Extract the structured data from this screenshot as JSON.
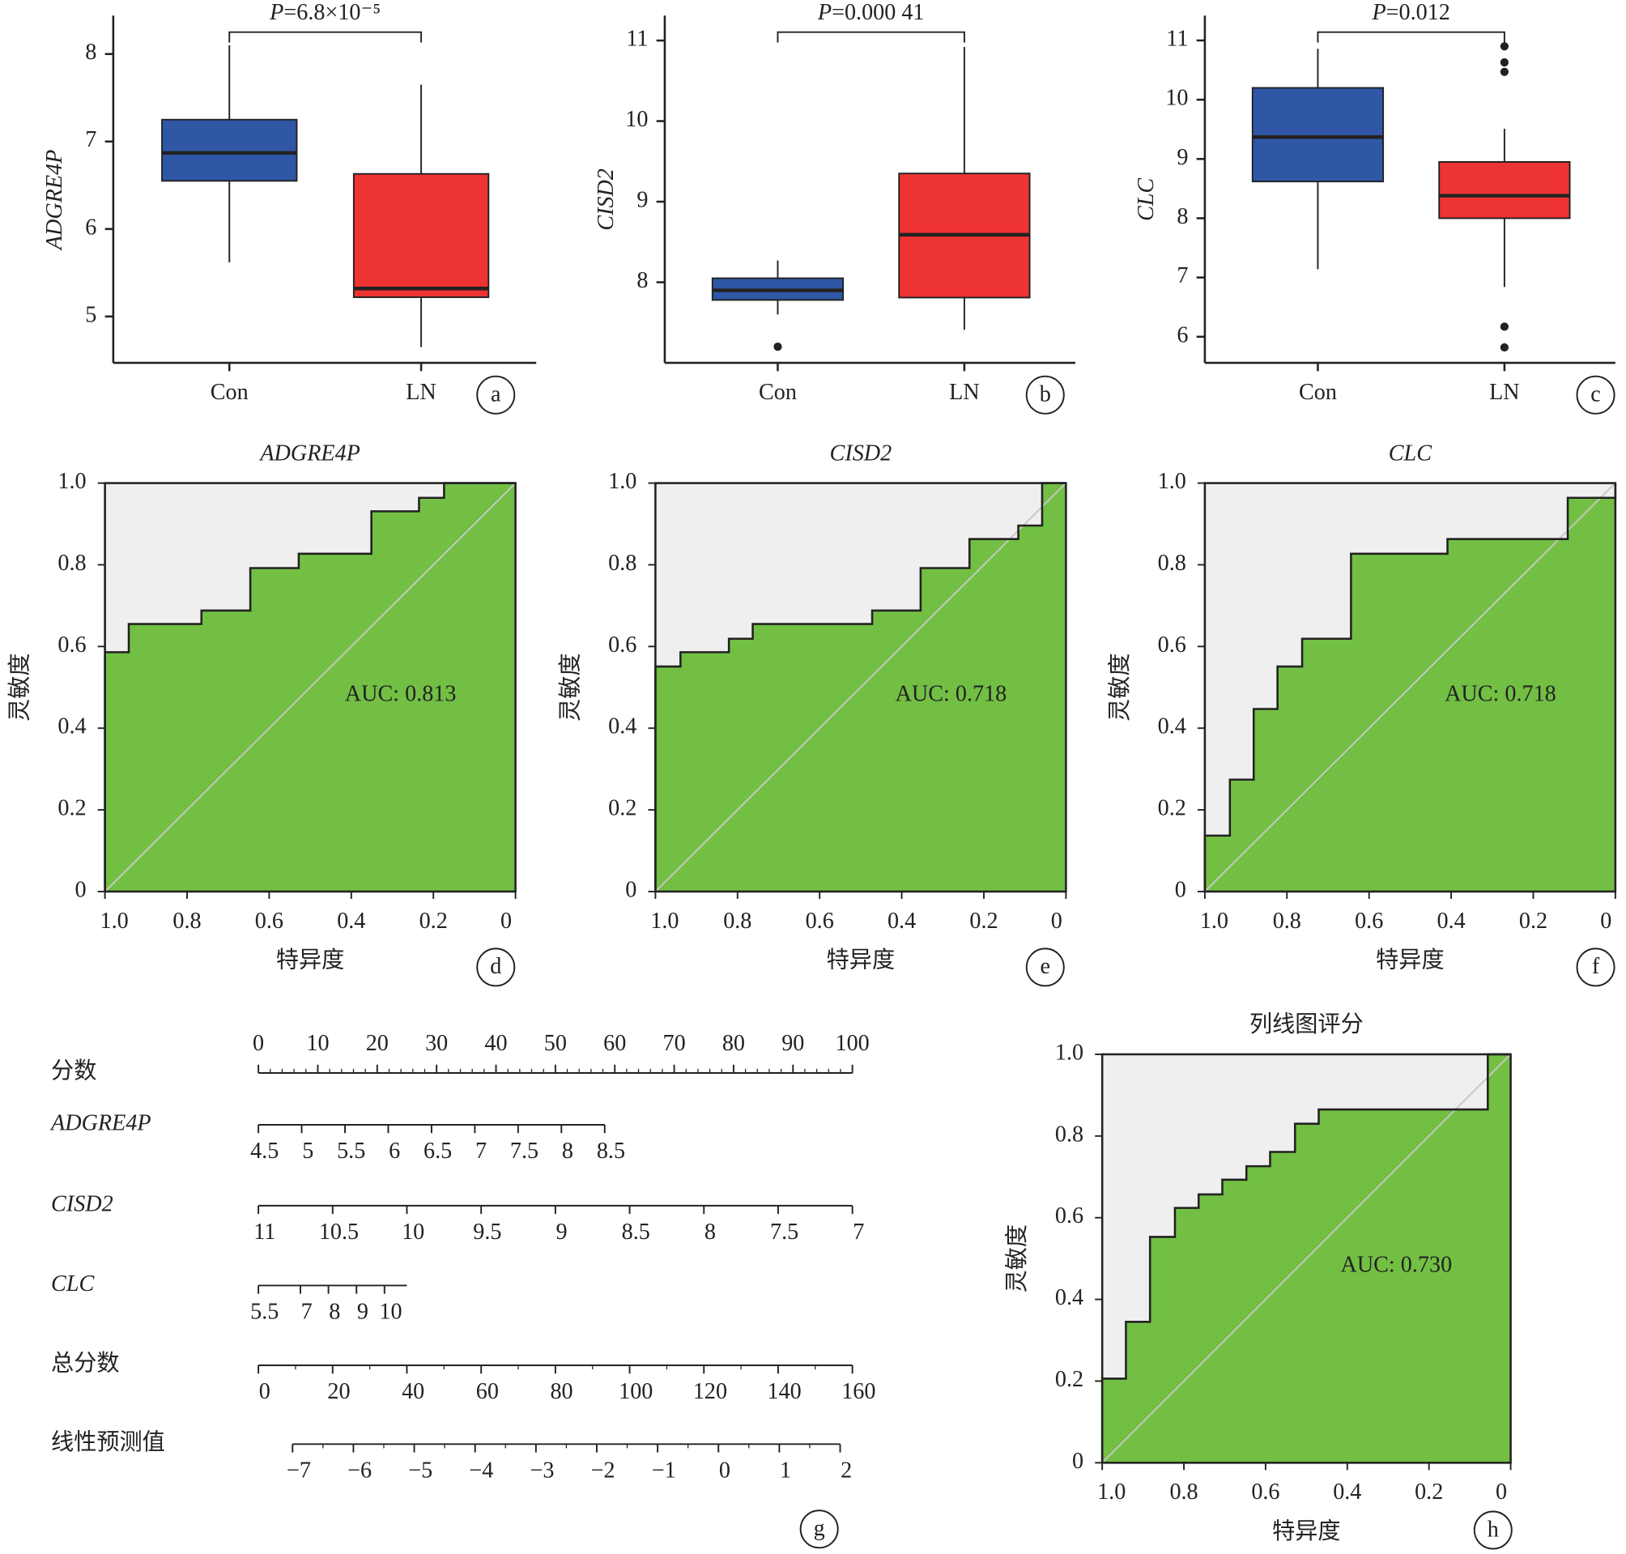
{
  "chart_data": [
    {
      "type": "box",
      "panel": "a",
      "ylabel": "ADGRE4P",
      "categories": [
        "Con",
        "LN"
      ],
      "colors": [
        "#2f57a6",
        "#ee3333"
      ],
      "boxes": [
        {
          "whislo": 5.62,
          "q1": 6.55,
          "med": 6.87,
          "q3": 7.25,
          "whishi": 8.1,
          "fliers": []
        },
        {
          "whislo": 4.65,
          "q1": 5.22,
          "med": 5.32,
          "q3": 6.63,
          "whishi": 7.65,
          "fliers": []
        }
      ],
      "ylim": [
        4.47,
        8.44
      ],
      "yticks": [
        5,
        6,
        7,
        8
      ],
      "p_label": "P",
      "p_value": "=6.8×10⁻⁵"
    },
    {
      "type": "box",
      "panel": "b",
      "ylabel": "CISD2",
      "categories": [
        "Con",
        "LN"
      ],
      "colors": [
        "#2f57a6",
        "#ee3333"
      ],
      "boxes": [
        {
          "whislo": 7.6,
          "q1": 7.78,
          "med": 7.9,
          "q3": 8.05,
          "whishi": 8.27,
          "fliers": [
            7.2
          ]
        },
        {
          "whislo": 7.41,
          "q1": 7.81,
          "med": 8.59,
          "q3": 9.35,
          "whishi": 10.92,
          "fliers": []
        }
      ],
      "ylim": [
        7.0,
        11.31
      ],
      "yticks": [
        8,
        9,
        10,
        11
      ],
      "p_label": "P",
      "p_value": "=0.000 41"
    },
    {
      "type": "box",
      "panel": "c",
      "ylabel": "CLC",
      "categories": [
        "Con",
        "LN"
      ],
      "colors": [
        "#2f57a6",
        "#ee3333"
      ],
      "boxes": [
        {
          "whislo": 7.14,
          "q1": 8.62,
          "med": 9.37,
          "q3": 10.2,
          "whishi": 10.86,
          "fliers": []
        },
        {
          "whislo": 6.84,
          "q1": 8.0,
          "med": 8.38,
          "q3": 8.95,
          "whishi": 9.51,
          "fliers": [
            10.9,
            10.63,
            10.47,
            6.17,
            5.82
          ]
        }
      ],
      "ylim": [
        5.56,
        11.42
      ],
      "yticks": [
        6,
        7,
        8,
        9,
        10,
        11
      ],
      "p_label": "P",
      "p_value": "=0.012"
    },
    {
      "type": "roc",
      "panel": "d",
      "title": "ADGRE4P",
      "italic": true,
      "xlabel": "特异度",
      "ylabel": "灵敏度",
      "annotation": "AUC: 0.813",
      "x": [
        1,
        1,
        0.942,
        0.942,
        0.765,
        0.765,
        0.646,
        0.646,
        0.528,
        0.528,
        0.351,
        0.351,
        0.235,
        0.235,
        0.174,
        0.174,
        0
      ],
      "y": [
        0,
        0.586,
        0.586,
        0.655,
        0.655,
        0.688,
        0.688,
        0.792,
        0.792,
        0.827,
        0.827,
        0.931,
        0.931,
        0.964,
        0.964,
        1,
        1
      ],
      "xlim": [
        1,
        0
      ],
      "ylim": [
        0,
        1
      ],
      "xticks": [
        {
          "value": 1,
          "label": "1.0"
        },
        0.8,
        0.6,
        0.4,
        0.2,
        0
      ],
      "yticks": [
        0,
        0.2,
        0.4,
        0.6,
        0.8,
        {
          "value": 1,
          "label": "1.0"
        }
      ]
    },
    {
      "type": "roc",
      "panel": "e",
      "title": "CISD2",
      "italic": true,
      "xlabel": "特异度",
      "ylabel": "灵敏度",
      "annotation": "AUC: 0.718",
      "x": [
        1,
        1,
        0.939,
        0.939,
        0.821,
        0.821,
        0.763,
        0.763,
        0.472,
        0.472,
        0.354,
        0.354,
        0.235,
        0.235,
        0.116,
        0.116,
        0.058,
        0.058,
        0
      ],
      "y": [
        0,
        0.551,
        0.551,
        0.586,
        0.586,
        0.619,
        0.619,
        0.655,
        0.655,
        0.688,
        0.688,
        0.792,
        0.792,
        0.863,
        0.863,
        0.896,
        0.896,
        1,
        1
      ],
      "xlim": [
        1,
        0
      ],
      "ylim": [
        0,
        1
      ],
      "xticks": [
        {
          "value": 1,
          "label": "1.0"
        },
        0.8,
        0.6,
        0.4,
        0.2,
        0
      ],
      "yticks": [
        0,
        0.2,
        0.4,
        0.6,
        0.8,
        {
          "value": 1,
          "label": "1.0"
        }
      ]
    },
    {
      "type": "roc",
      "panel": "f",
      "title": "CLC",
      "italic": true,
      "xlabel": "特异度",
      "ylabel": "灵敏度",
      "annotation": "AUC: 0.718",
      "x": [
        1,
        1,
        0.939,
        0.939,
        0.881,
        0.881,
        0.823,
        0.823,
        0.763,
        0.763,
        0.644,
        0.644,
        0.409,
        0.409,
        0.116,
        0.116,
        0,
        0
      ],
      "y": [
        0,
        0.137,
        0.137,
        0.274,
        0.274,
        0.447,
        0.447,
        0.551,
        0.551,
        0.619,
        0.619,
        0.827,
        0.827,
        0.863,
        0.863,
        0.964,
        0.964,
        1
      ],
      "xlim": [
        1,
        0
      ],
      "ylim": [
        0,
        1
      ],
      "xticks": [
        {
          "value": 1,
          "label": "1.0"
        },
        0.8,
        0.6,
        0.4,
        0.2,
        0
      ],
      "yticks": [
        0,
        0.2,
        0.4,
        0.6,
        0.8,
        {
          "value": 1,
          "label": "1.0"
        }
      ]
    },
    {
      "type": "nomogram",
      "panel": "g",
      "rows": [
        {
          "name": "分数",
          "lim": [
            0,
            100
          ],
          "points": [
            0,
            100
          ],
          "ticks": [
            0,
            10,
            20,
            30,
            40,
            50,
            60,
            70,
            80,
            90,
            100
          ]
        },
        {
          "name": "ADGRE4P",
          "italic": true,
          "lim": [
            4.5,
            8.5
          ],
          "points": [
            0,
            58.3
          ],
          "ticks": [
            4.5,
            5,
            5.5,
            6,
            6.5,
            7,
            7.5,
            8,
            8.5
          ]
        },
        {
          "name": "CISD2",
          "italic": true,
          "lim": [
            11,
            7
          ],
          "points": [
            0,
            100
          ],
          "ticks": [
            11,
            10.5,
            10,
            9.5,
            9,
            8.5,
            8,
            7.5,
            7
          ]
        },
        {
          "name": "CLC",
          "italic": true,
          "lim": [
            5.5,
            10.8
          ],
          "points": [
            0,
            25
          ],
          "ticks": [
            5.5,
            7,
            8,
            9,
            10
          ]
        },
        {
          "name": "总分数",
          "lim": [
            0,
            160
          ],
          "points": [
            0,
            100
          ],
          "ticks": [
            0,
            20,
            40,
            60,
            80,
            100,
            120,
            140,
            160
          ]
        },
        {
          "name": "线性预测值",
          "lim": [
            -7,
            2
          ],
          "total_points": [
            9.2,
            156.7
          ],
          "ticks": [
            {
              "value": -7,
              "label": "−7"
            },
            {
              "value": -6,
              "label": "−6"
            },
            {
              "value": -5,
              "label": "−5"
            },
            {
              "value": -4,
              "label": "−4"
            },
            {
              "value": -3,
              "label": "−3"
            },
            {
              "value": -2,
              "label": "−2"
            },
            {
              "value": -1,
              "label": "−1"
            },
            0,
            1,
            2
          ]
        }
      ]
    },
    {
      "type": "roc",
      "panel": "h",
      "title": "列线图评分",
      "xlabel": "特异度",
      "ylabel": "灵敏度",
      "annotation": "AUC: 0.730",
      "x": [
        1,
        1,
        0.942,
        0.942,
        0.883,
        0.883,
        0.822,
        0.822,
        0.764,
        0.764,
        0.706,
        0.706,
        0.647,
        0.647,
        0.589,
        0.589,
        0.528,
        0.528,
        0.47,
        0.47,
        0.056,
        0.056,
        0
      ],
      "y": [
        0,
        0.206,
        0.206,
        0.345,
        0.345,
        0.553,
        0.553,
        0.624,
        0.624,
        0.657,
        0.657,
        0.693,
        0.693,
        0.726,
        0.726,
        0.761,
        0.761,
        0.83,
        0.83,
        0.865,
        0.865,
        1,
        1
      ],
      "xlim": [
        1,
        0
      ],
      "ylim": [
        0,
        1
      ],
      "xticks": [
        {
          "value": 1,
          "label": "1.0"
        },
        0.8,
        0.6,
        0.4,
        0.2,
        0
      ],
      "yticks": [
        0,
        0.2,
        0.4,
        0.6,
        0.8,
        {
          "value": 1,
          "label": "1.0"
        }
      ]
    }
  ]
}
